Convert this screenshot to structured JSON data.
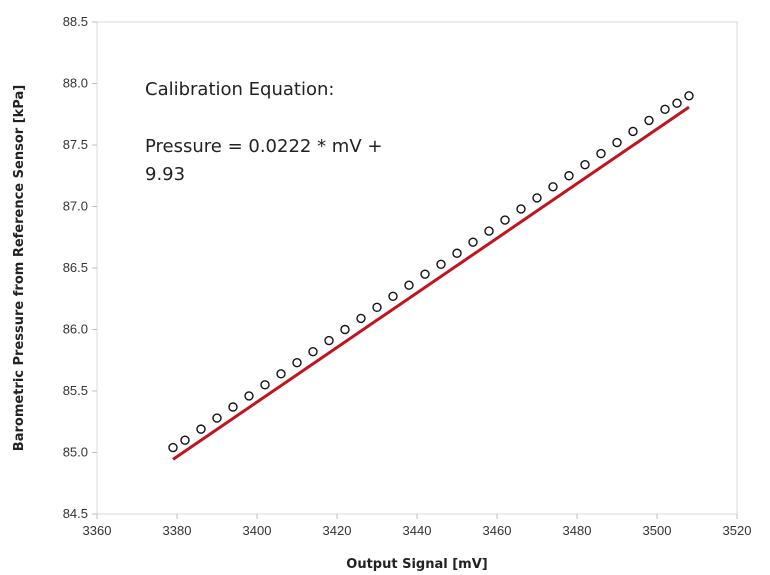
{
  "chart_data": {
    "type": "scatter",
    "title": "",
    "xlabel": "Output Signal [mV]",
    "ylabel": "Barometric Pressure from Reference Sensor [kPa]",
    "xlim": [
      3360,
      3520
    ],
    "ylim": [
      84.5,
      88.5
    ],
    "xticks": [
      3360,
      3380,
      3400,
      3420,
      3440,
      3460,
      3480,
      3500,
      3520
    ],
    "yticks": [
      84.5,
      85.0,
      85.5,
      86.0,
      86.5,
      87.0,
      87.5,
      88.0,
      88.5
    ],
    "xtick_labels": [
      "3360",
      "3380",
      "3400",
      "3420",
      "3440",
      "3460",
      "3480",
      "3500",
      "3520"
    ],
    "ytick_labels": [
      "84.5",
      "85.0",
      "85.5",
      "86.0",
      "86.5",
      "87.0",
      "87.5",
      "88.0",
      "88.5"
    ],
    "grid": false,
    "annotation": {
      "heading": "Calibration Equation:",
      "line1": "Pressure = 0.0222 * mV +",
      "line2": "9.93"
    },
    "fit": {
      "slope": 0.0222,
      "intercept": 9.93,
      "x_range": [
        3379,
        3508
      ],
      "color": "#c0141e"
    },
    "series": [
      {
        "marker": "open-circle",
        "color": "#111111",
        "points": [
          [
            3379,
            85.04
          ],
          [
            3382,
            85.1
          ],
          [
            3386,
            85.19
          ],
          [
            3390,
            85.28
          ],
          [
            3394,
            85.37
          ],
          [
            3398,
            85.46
          ],
          [
            3402,
            85.55
          ],
          [
            3406,
            85.64
          ],
          [
            3410,
            85.73
          ],
          [
            3414,
            85.82
          ],
          [
            3418,
            85.91
          ],
          [
            3422,
            86.0
          ],
          [
            3426,
            86.09
          ],
          [
            3430,
            86.18
          ],
          [
            3434,
            86.27
          ],
          [
            3438,
            86.36
          ],
          [
            3442,
            86.45
          ],
          [
            3446,
            86.53
          ],
          [
            3450,
            86.62
          ],
          [
            3454,
            86.71
          ],
          [
            3458,
            86.8
          ],
          [
            3462,
            86.89
          ],
          [
            3466,
            86.98
          ],
          [
            3470,
            87.07
          ],
          [
            3474,
            87.16
          ],
          [
            3478,
            87.25
          ],
          [
            3482,
            87.34
          ],
          [
            3486,
            87.43
          ],
          [
            3490,
            87.52
          ],
          [
            3494,
            87.61
          ],
          [
            3498,
            87.7
          ],
          [
            3502,
            87.79
          ],
          [
            3505,
            87.84
          ],
          [
            3508,
            87.9
          ]
        ]
      }
    ]
  }
}
